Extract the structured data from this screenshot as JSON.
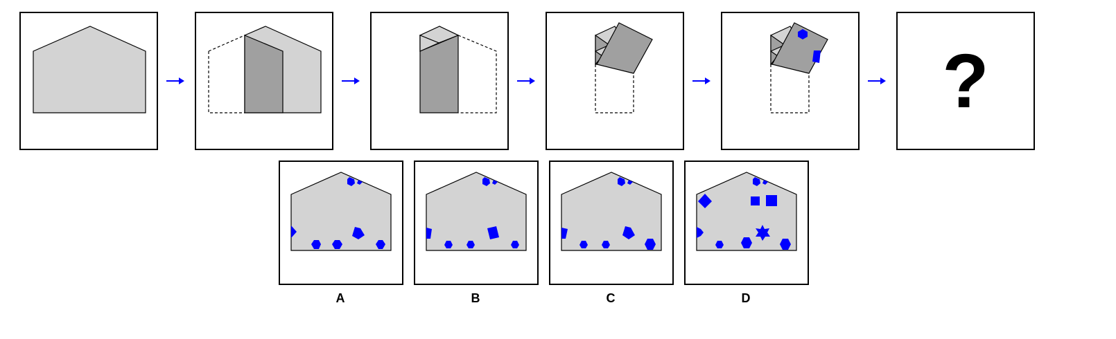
{
  "sequence": {
    "steps": [
      {
        "id": "step-1",
        "desc_shape": "house-pentagon"
      },
      {
        "id": "step-2",
        "desc_shape": "fold-left-flap"
      },
      {
        "id": "step-3",
        "desc_shape": "fold-right-flap"
      },
      {
        "id": "step-4",
        "desc_shape": "fold-top-down"
      },
      {
        "id": "step-5",
        "desc_shape": "punch-holes"
      },
      {
        "id": "step-6",
        "question": "?"
      }
    ],
    "arrow_color": "#0000ff"
  },
  "options": [
    {
      "label": "A"
    },
    {
      "label": "B"
    },
    {
      "label": "C"
    },
    {
      "label": "D"
    }
  ],
  "colors": {
    "paper": "#d3d3d3",
    "fold_dark": "#a0a0a0",
    "hole": "#0000ff",
    "outline": "#000000"
  }
}
